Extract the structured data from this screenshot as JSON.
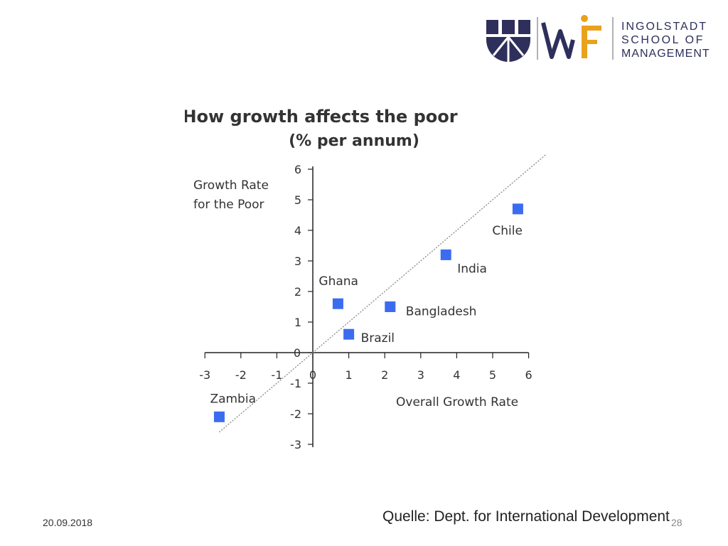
{
  "logo": {
    "lines": [
      "INGOLSTADT",
      "SCHOOL OF",
      "MANAGEMENT"
    ],
    "colors": {
      "navy": "#2e2f5b",
      "gold": "#e8a21b"
    }
  },
  "chart_data": {
    "type": "scatter",
    "title": "How growth affects the poor",
    "subtitle": "(% per annum)",
    "xlabel": "Overall Growth Rate",
    "ylabel_lines": [
      "Growth Rate",
      "for the Poor"
    ],
    "xlim": [
      -3,
      6
    ],
    "ylim": [
      -3,
      6
    ],
    "x_ticks": [
      -3,
      -2,
      -1,
      0,
      1,
      2,
      3,
      4,
      5,
      6
    ],
    "y_ticks": [
      6,
      5,
      4,
      3,
      2,
      1,
      0,
      -1,
      -2,
      -3
    ],
    "reference_line": {
      "x": [
        -2.6,
        6.5
      ],
      "y": [
        -2.6,
        6.5
      ],
      "style": "dotted",
      "color": "#888888"
    },
    "marker_color": "#3b6cf0",
    "grid": false,
    "points": [
      {
        "label": "Chile",
        "x": 5.7,
        "y": 4.7
      },
      {
        "label": "India",
        "x": 3.7,
        "y": 3.2
      },
      {
        "label": "Ghana",
        "x": 0.7,
        "y": 1.6
      },
      {
        "label": "Bangladesh",
        "x": 2.15,
        "y": 1.5
      },
      {
        "label": "Brazil",
        "x": 1.0,
        "y": 0.6
      },
      {
        "label": "Zambia",
        "x": -2.6,
        "y": -2.1
      }
    ]
  },
  "footer": {
    "date": "20.09.2018",
    "page": "28",
    "source": "Quelle: Dept. for International Development"
  }
}
